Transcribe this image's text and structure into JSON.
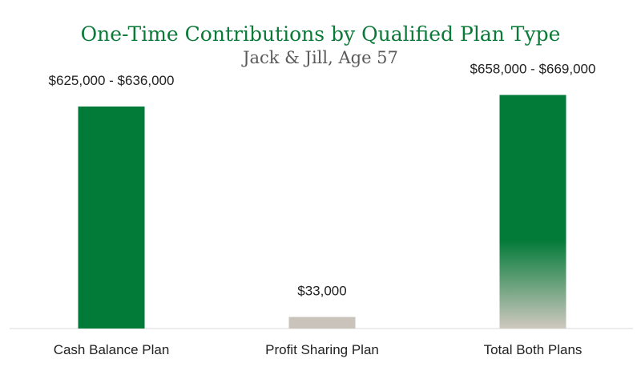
{
  "chart_data": {
    "type": "bar",
    "title": "One-Time Contributions by Qualified Plan Type",
    "subtitle": "Jack & Jill, Age 57",
    "categories": [
      "Cash Balance Plan",
      "Profit Sharing Plan",
      "Total Both Plans"
    ],
    "values": [
      636000,
      33000,
      669000
    ],
    "data_labels": [
      "$625,000 - $636,000",
      "$33,000",
      "$658,000 - $669,000"
    ],
    "ylim": [
      0,
      700000
    ],
    "grid": false,
    "colors": {
      "cash_balance": "#027a38",
      "profit_sharing": "#c9c3bc",
      "total_top": "#027a38",
      "total_bottom": "#cfc8bf",
      "title": "#0b7a38",
      "subtitle": "#5a5a5a",
      "axis": "#d9d9d9"
    }
  }
}
